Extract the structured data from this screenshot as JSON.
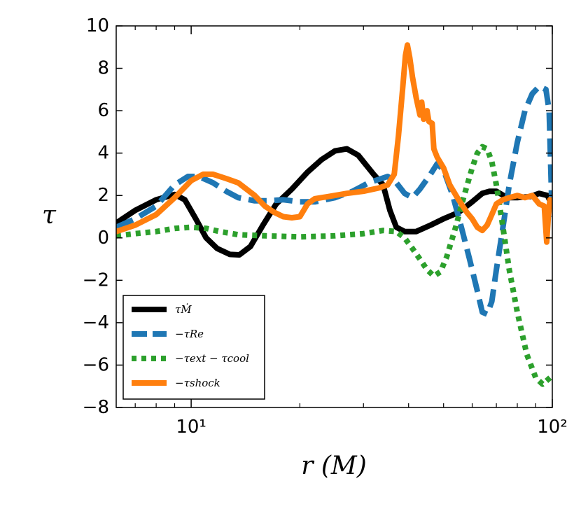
{
  "chart_data": {
    "type": "line",
    "xscale": "log",
    "xlabel": "r (M)",
    "ylabel": "τ",
    "xlim": [
      6.2,
      100
    ],
    "ylim": [
      -8,
      10
    ],
    "yticks": [
      10,
      8,
      6,
      4,
      2,
      0,
      -2,
      -4,
      -6,
      -8
    ],
    "ytick_labels": [
      "10",
      "8",
      "6",
      "4",
      "2",
      "0",
      "−2",
      "−4",
      "−6",
      "−8"
    ],
    "xticks": [
      10,
      100
    ],
    "xtick_labels": [
      "10¹",
      "10²"
    ],
    "legend_position": "lower-left",
    "series": [
      {
        "name": "τ_Ṁ",
        "label": "τṀ",
        "color": "#000000",
        "style": "solid",
        "points": [
          [
            6.2,
            0.7
          ],
          [
            7,
            1.3
          ],
          [
            8,
            1.8
          ],
          [
            9,
            2.05
          ],
          [
            9.6,
            1.8
          ],
          [
            10.3,
            0.9
          ],
          [
            11,
            0.0
          ],
          [
            11.8,
            -0.5
          ],
          [
            12.8,
            -0.78
          ],
          [
            13.6,
            -0.8
          ],
          [
            14.6,
            -0.4
          ],
          [
            15.8,
            0.6
          ],
          [
            17.2,
            1.6
          ],
          [
            19,
            2.3
          ],
          [
            21,
            3.1
          ],
          [
            23,
            3.7
          ],
          [
            25,
            4.1
          ],
          [
            27,
            4.2
          ],
          [
            29,
            3.9
          ],
          [
            32,
            3.0
          ],
          [
            34,
            2.5
          ],
          [
            35.5,
            1.3
          ],
          [
            37,
            0.5
          ],
          [
            39,
            0.3
          ],
          [
            42,
            0.3
          ],
          [
            46,
            0.6
          ],
          [
            50,
            0.9
          ],
          [
            55,
            1.2
          ],
          [
            60,
            1.7
          ],
          [
            64,
            2.1
          ],
          [
            67,
            2.2
          ],
          [
            70,
            2.2
          ],
          [
            75,
            1.9
          ],
          [
            80,
            1.9
          ],
          [
            87,
            1.95
          ],
          [
            92,
            2.1
          ],
          [
            97,
            2.0
          ],
          [
            100,
            1.5
          ]
        ]
      },
      {
        "name": "−τ_Re",
        "label": "−τRe",
        "color": "#1f77b4",
        "style": "dashed",
        "points": [
          [
            6.2,
            0.5
          ],
          [
            7,
            0.9
          ],
          [
            8,
            1.5
          ],
          [
            9,
            2.5
          ],
          [
            9.8,
            2.9
          ],
          [
            10.5,
            2.9
          ],
          [
            11.5,
            2.6
          ],
          [
            12.5,
            2.2
          ],
          [
            13.5,
            1.9
          ],
          [
            15,
            1.75
          ],
          [
            16.5,
            1.75
          ],
          [
            18,
            1.8
          ],
          [
            20,
            1.7
          ],
          [
            22,
            1.7
          ],
          [
            25,
            1.9
          ],
          [
            28,
            2.2
          ],
          [
            31,
            2.6
          ],
          [
            35,
            2.9
          ],
          [
            37,
            2.6
          ],
          [
            39,
            2.1
          ],
          [
            41,
            1.9
          ],
          [
            43,
            2.3
          ],
          [
            46,
            3.0
          ],
          [
            48,
            3.5
          ],
          [
            50,
            3.2
          ],
          [
            53,
            2.0
          ],
          [
            56,
            0.5
          ],
          [
            59,
            -1.0
          ],
          [
            62,
            -2.5
          ],
          [
            64,
            -3.5
          ],
          [
            66,
            -3.6
          ],
          [
            68,
            -3.0
          ],
          [
            70,
            -1.5
          ],
          [
            73,
            0.5
          ],
          [
            76,
            2.5
          ],
          [
            80,
            4.5
          ],
          [
            84,
            6.0
          ],
          [
            88,
            6.8
          ],
          [
            92,
            7.15
          ],
          [
            96,
            7.0
          ],
          [
            98,
            6.0
          ],
          [
            99.5,
            2.0
          ],
          [
            100,
            1.0
          ]
        ]
      },
      {
        "name": "−τ_ext − τ_cool",
        "label": "−τext − τcool",
        "color": "#2ca02c",
        "style": "dotted",
        "points": [
          [
            6.2,
            0.1
          ],
          [
            7,
            0.2
          ],
          [
            8,
            0.3
          ],
          [
            9,
            0.45
          ],
          [
            10,
            0.5
          ],
          [
            11,
            0.45
          ],
          [
            12,
            0.3
          ],
          [
            13.5,
            0.15
          ],
          [
            16,
            0.1
          ],
          [
            20,
            0.05
          ],
          [
            25,
            0.1
          ],
          [
            30,
            0.2
          ],
          [
            34,
            0.35
          ],
          [
            37,
            0.3
          ],
          [
            39,
            0.0
          ],
          [
            41,
            -0.5
          ],
          [
            43,
            -1.0
          ],
          [
            45,
            -1.5
          ],
          [
            47,
            -1.8
          ],
          [
            49,
            -1.6
          ],
          [
            51,
            -0.9
          ],
          [
            54,
            0.5
          ],
          [
            57,
            2.0
          ],
          [
            60,
            3.3
          ],
          [
            62,
            4.0
          ],
          [
            64,
            4.3
          ],
          [
            66,
            4.2
          ],
          [
            68,
            3.6
          ],
          [
            70,
            2.5
          ],
          [
            73,
            0.5
          ],
          [
            76,
            -1.5
          ],
          [
            80,
            -3.5
          ],
          [
            85,
            -5.5
          ],
          [
            90,
            -6.6
          ],
          [
            94,
            -6.9
          ],
          [
            97,
            -6.7
          ],
          [
            100,
            -6.5
          ]
        ]
      },
      {
        "name": "−τ_shock",
        "label": "−τshock",
        "color": "#ff7f0e",
        "style": "solid",
        "points": [
          [
            6.2,
            0.3
          ],
          [
            7,
            0.6
          ],
          [
            8,
            1.1
          ],
          [
            9,
            1.9
          ],
          [
            10,
            2.7
          ],
          [
            10.8,
            3.0
          ],
          [
            11.5,
            3.0
          ],
          [
            12.5,
            2.8
          ],
          [
            13.5,
            2.6
          ],
          [
            15,
            2.0
          ],
          [
            16,
            1.5
          ],
          [
            17,
            1.2
          ],
          [
            18,
            1.0
          ],
          [
            19,
            0.95
          ],
          [
            20,
            1.0
          ],
          [
            21,
            1.6
          ],
          [
            22,
            1.85
          ],
          [
            24,
            1.95
          ],
          [
            27,
            2.1
          ],
          [
            30,
            2.2
          ],
          [
            33,
            2.35
          ],
          [
            35,
            2.5
          ],
          [
            36.5,
            3.0
          ],
          [
            37.5,
            4.8
          ],
          [
            38.5,
            7.0
          ],
          [
            39.2,
            8.6
          ],
          [
            39.7,
            9.1
          ],
          [
            40.3,
            8.5
          ],
          [
            41,
            7.6
          ],
          [
            42,
            6.6
          ],
          [
            43,
            5.8
          ],
          [
            43.5,
            6.4
          ],
          [
            44,
            5.6
          ],
          [
            45,
            6.0
          ],
          [
            45.5,
            5.5
          ],
          [
            46.5,
            5.4
          ],
          [
            47,
            4.2
          ],
          [
            48,
            3.8
          ],
          [
            50,
            3.3
          ],
          [
            52,
            2.5
          ],
          [
            55,
            1.8
          ],
          [
            58,
            1.2
          ],
          [
            60,
            0.9
          ],
          [
            62,
            0.5
          ],
          [
            64,
            0.35
          ],
          [
            66,
            0.6
          ],
          [
            68,
            1.1
          ],
          [
            70,
            1.6
          ],
          [
            73,
            1.8
          ],
          [
            76,
            1.9
          ],
          [
            80,
            2.0
          ],
          [
            84,
            1.9
          ],
          [
            88,
            2.0
          ],
          [
            92,
            1.6
          ],
          [
            95,
            1.5
          ],
          [
            96.5,
            -0.2
          ],
          [
            97.5,
            1.0
          ],
          [
            98.5,
            1.8
          ],
          [
            100,
            1.7
          ]
        ]
      }
    ]
  }
}
